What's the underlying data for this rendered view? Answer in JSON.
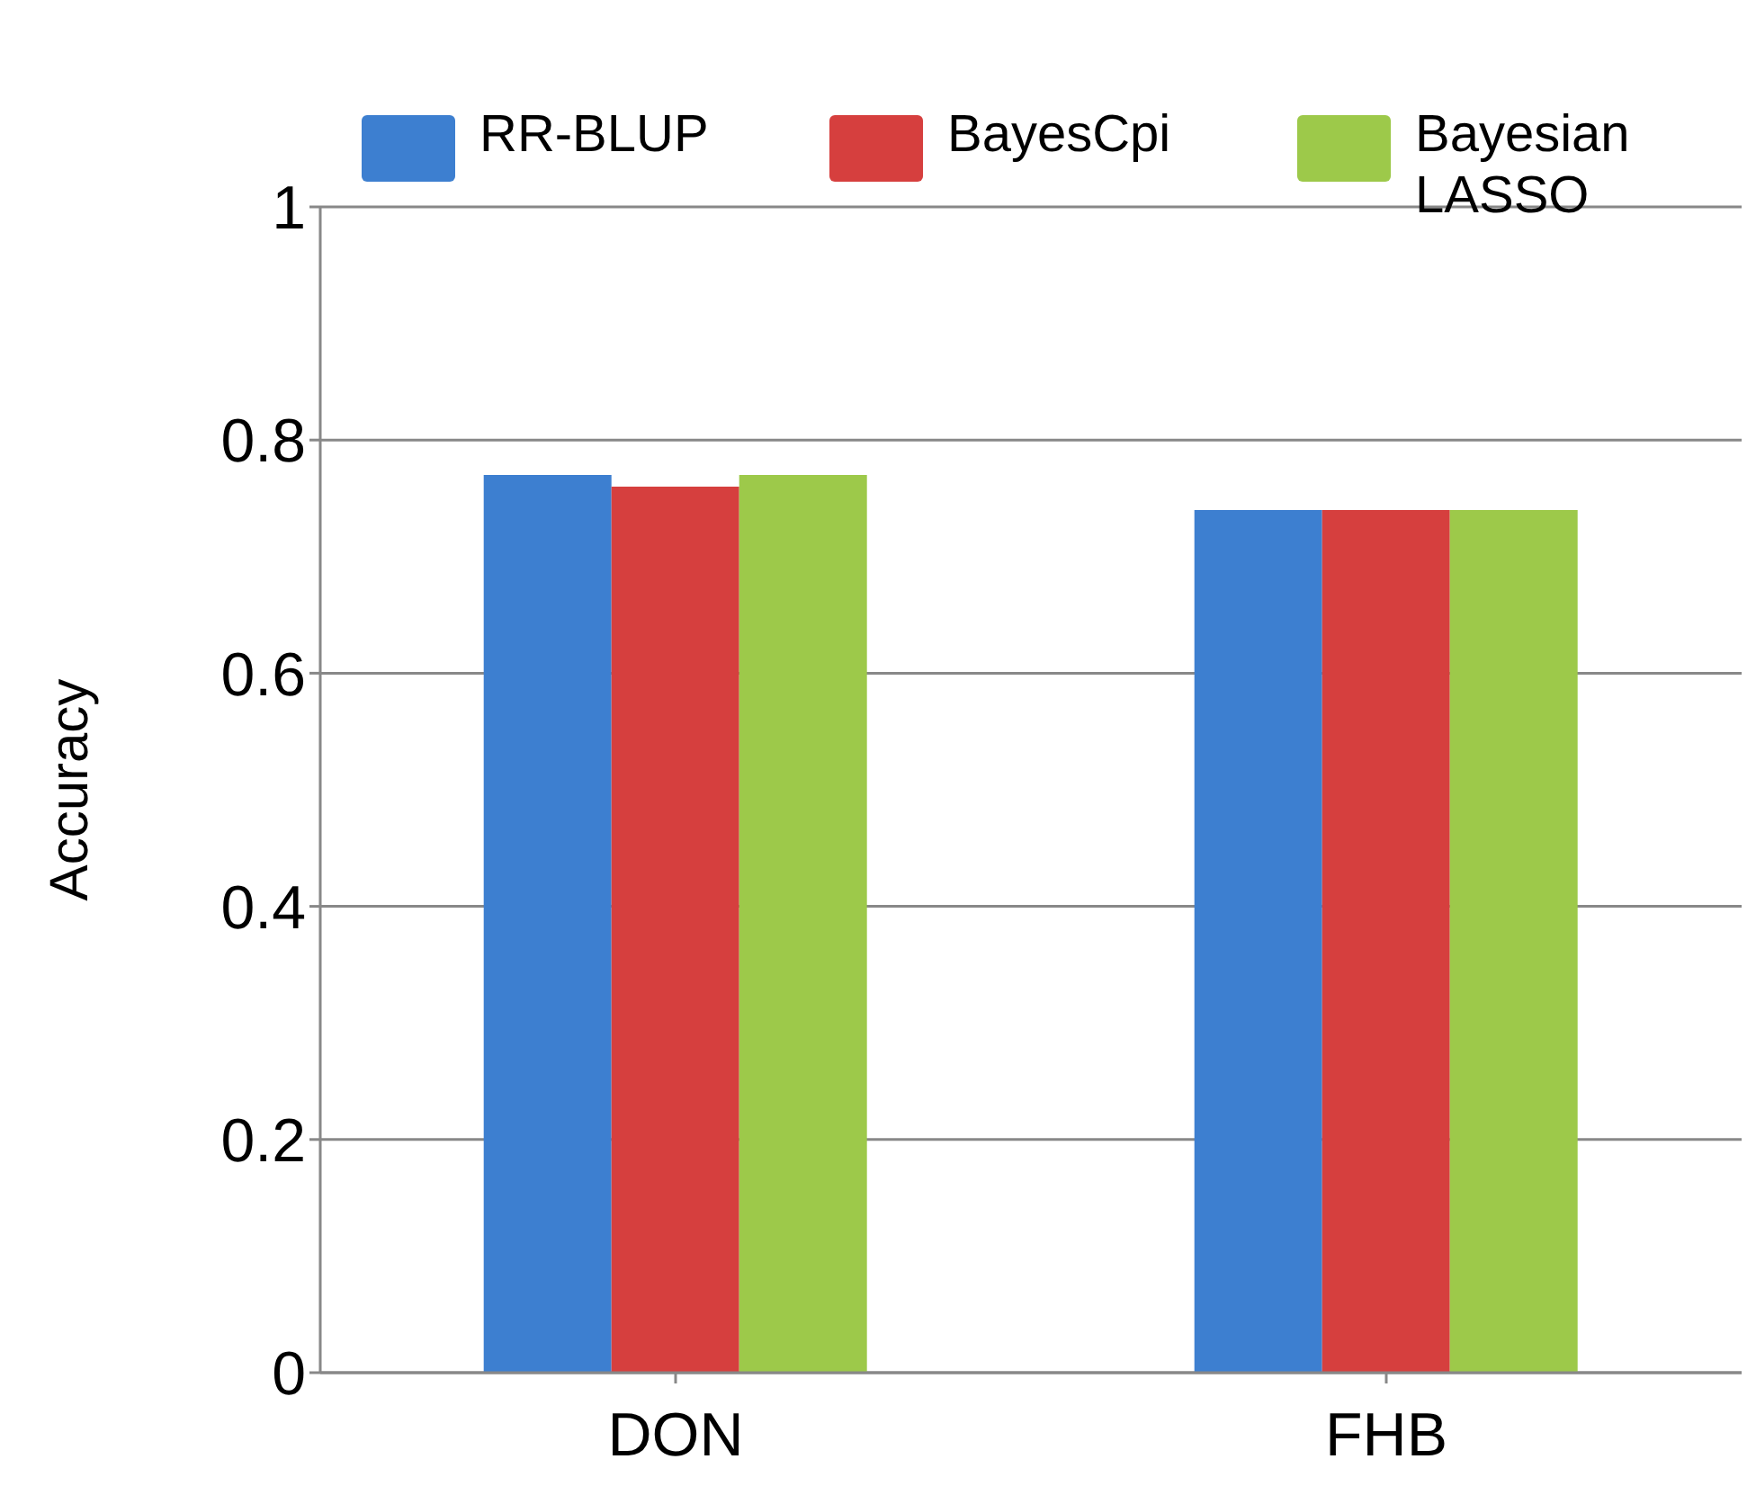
{
  "chart_data": {
    "type": "bar",
    "ylabel": "Accuracy",
    "categories": [
      "DON",
      "FHB"
    ],
    "series": [
      {
        "name": "RR-BLUP",
        "color": "#3d7fd0",
        "values": [
          0.77,
          0.74
        ]
      },
      {
        "name": "BayesCpi",
        "color": "#d63f3e",
        "values": [
          0.76,
          0.74
        ]
      },
      {
        "name": "Bayesian LASSO",
        "color": "#9dc94a",
        "values": [
          0.77,
          0.74
        ]
      }
    ],
    "ylim": [
      0,
      1
    ],
    "yticks": [
      0,
      0.2,
      0.4,
      0.6,
      0.8,
      1
    ],
    "grid": "y",
    "legend": "top"
  }
}
